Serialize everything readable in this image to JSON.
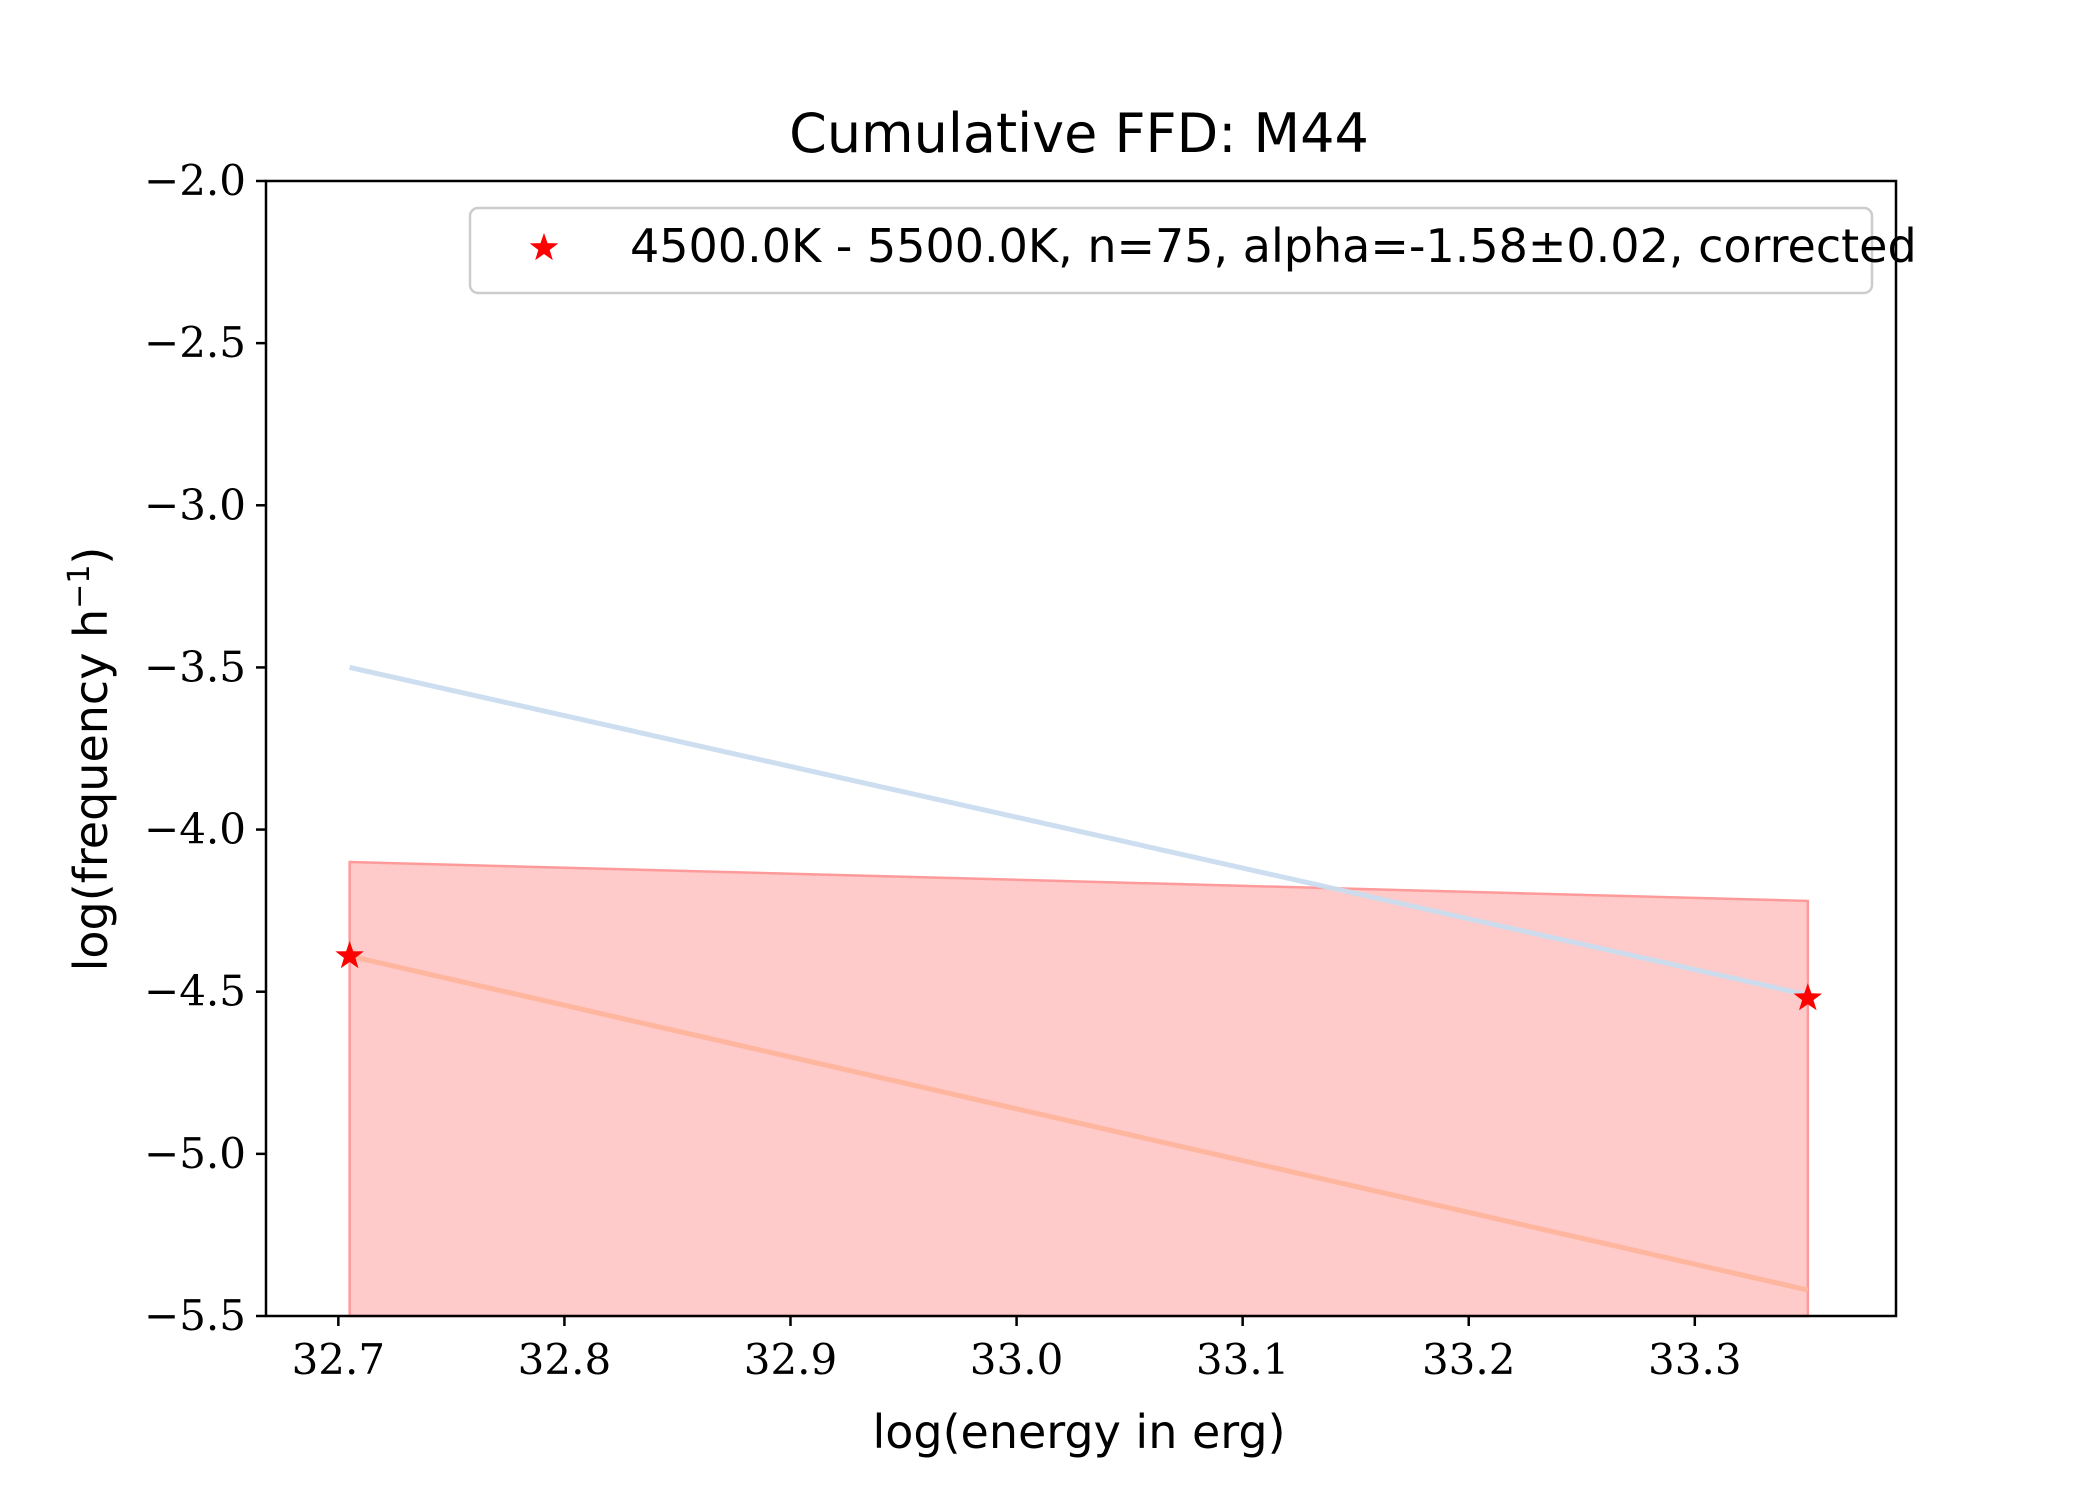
{
  "chart_data": {
    "type": "line",
    "title": "Cumulative FFD: M44",
    "xlabel": "log(energy in erg)",
    "ylabel": "log(frequency h",
    "ylabel_sup": "−1",
    "ylabel_close": ")",
    "xlim": [
      32.668,
      33.389
    ],
    "ylim": [
      -5.5,
      -2.0
    ],
    "x_ticks": [
      32.7,
      32.8,
      32.9,
      33.0,
      33.1,
      33.2,
      33.3
    ],
    "x_tick_labels": [
      "32.7",
      "32.8",
      "32.9",
      "33.0",
      "33.1",
      "33.2",
      "33.3"
    ],
    "y_ticks": [
      -2.0,
      -2.5,
      -3.0,
      -3.5,
      -4.0,
      -4.5,
      -5.0,
      -5.5
    ],
    "y_tick_labels": [
      "−2.0",
      "−2.5",
      "−3.0",
      "−3.5",
      "−4.0",
      "−4.5",
      "−5.0",
      "−5.5"
    ],
    "grid": false,
    "legend_position": "top-right",
    "series": [
      {
        "name": "4500.0K - 5500.0K, n=75, alpha=-1.58±0.02, corrected",
        "kind": "scatter",
        "marker": "star",
        "color": "#ff0000",
        "x": [
          32.705,
          33.35
        ],
        "y": [
          -4.39,
          -4.52
        ]
      },
      {
        "kind": "line",
        "color": "#c9dcee",
        "x": [
          32.705,
          33.35
        ],
        "y": [
          -3.5,
          -4.51
        ]
      },
      {
        "kind": "line",
        "color": "#ffb49c",
        "x": [
          32.705,
          33.35
        ],
        "y": [
          -4.39,
          -5.42
        ]
      },
      {
        "kind": "band",
        "color": "#ffcaca",
        "edge_color": "#ff9a9a",
        "x": [
          32.705,
          33.35
        ],
        "y_upper": [
          -4.1,
          -4.22
        ],
        "y_lower": [
          -5.5,
          -5.5
        ]
      }
    ]
  }
}
